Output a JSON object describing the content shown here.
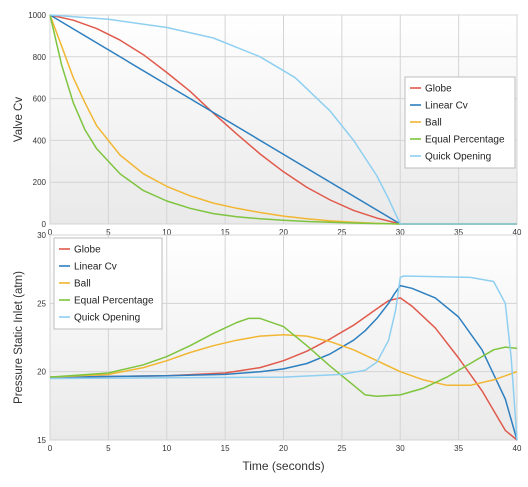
{
  "chart_data": [
    {
      "type": "line",
      "title": "",
      "xlabel": "",
      "ylabel": "Valve Cv",
      "xlim": [
        0,
        40
      ],
      "ylim": [
        0,
        1000
      ],
      "x_ticks": [
        "0",
        "5",
        "10",
        "15",
        "20",
        "25",
        "30",
        "35",
        "40"
      ],
      "y_ticks": [
        "0",
        "200",
        "400",
        "600",
        "800",
        "1000"
      ],
      "grid": true,
      "legend_position": "right",
      "series": [
        {
          "name": "Globe",
          "color": "#e05a4c",
          "x": [
            0,
            2,
            4,
            6,
            8,
            10,
            12,
            14,
            16,
            18,
            20,
            22,
            24,
            26,
            28,
            30,
            40
          ],
          "y": [
            1000,
            975,
            935,
            880,
            810,
            725,
            635,
            530,
            430,
            335,
            250,
            175,
            115,
            65,
            28,
            0,
            0
          ]
        },
        {
          "name": "Linear Cv",
          "color": "#2e7fbf",
          "x": [
            0,
            30,
            40
          ],
          "y": [
            1000,
            0,
            0
          ]
        },
        {
          "name": "Ball",
          "color": "#f2b632",
          "x": [
            0,
            1,
            2,
            3,
            4,
            6,
            8,
            10,
            12,
            14,
            16,
            18,
            20,
            22,
            24,
            26,
            28,
            30,
            40
          ],
          "y": [
            1000,
            850,
            700,
            580,
            470,
            330,
            240,
            180,
            135,
            100,
            75,
            55,
            38,
            25,
            15,
            8,
            3,
            0,
            0
          ]
        },
        {
          "name": "Equal Percentage",
          "color": "#7ec43f",
          "x": [
            0,
            1,
            2,
            3,
            4,
            6,
            8,
            10,
            12,
            14,
            16,
            18,
            20,
            22,
            24,
            26,
            28,
            30,
            40
          ],
          "y": [
            1000,
            760,
            580,
            450,
            360,
            240,
            160,
            110,
            75,
            50,
            35,
            25,
            18,
            12,
            8,
            5,
            2,
            0,
            0
          ]
        },
        {
          "name": "Quick Opening",
          "color": "#8fcff0",
          "x": [
            0,
            5,
            10,
            14,
            18,
            21,
            24,
            26,
            28,
            29,
            30,
            40
          ],
          "y": [
            1000,
            980,
            940,
            890,
            800,
            700,
            540,
            400,
            230,
            120,
            0,
            0
          ]
        }
      ]
    },
    {
      "type": "line",
      "title": "",
      "xlabel": "Time (seconds)",
      "ylabel": "Pressure Static Inlet (atm)",
      "xlim": [
        0,
        40
      ],
      "ylim": [
        15,
        30
      ],
      "x_ticks": [
        "0",
        "5",
        "10",
        "15",
        "20",
        "25",
        "30",
        "35",
        "40"
      ],
      "y_ticks": [
        "15",
        "20",
        "25",
        "30"
      ],
      "grid": true,
      "legend_position": "top-left",
      "series": [
        {
          "name": "Globe",
          "color": "#e05a4c",
          "x": [
            0,
            10,
            15,
            18,
            20,
            22,
            24,
            26,
            28,
            29,
            30,
            31,
            33,
            35,
            37,
            39,
            40
          ],
          "y": [
            19.6,
            19.7,
            19.9,
            20.3,
            20.8,
            21.5,
            22.4,
            23.4,
            24.6,
            25.2,
            25.4,
            24.8,
            23.2,
            21.0,
            18.6,
            15.7,
            15.0
          ]
        },
        {
          "name": "Linear Cv",
          "color": "#2e7fbf",
          "x": [
            0,
            10,
            15,
            18,
            20,
            22,
            24,
            26,
            27,
            28,
            29,
            29.5,
            30,
            31,
            33,
            35,
            37,
            39,
            40
          ],
          "y": [
            19.6,
            19.7,
            19.8,
            20.0,
            20.2,
            20.6,
            21.3,
            22.3,
            23.0,
            23.9,
            25.0,
            25.7,
            26.3,
            26.1,
            25.4,
            24.0,
            21.6,
            18.0,
            15.0
          ]
        },
        {
          "name": "Ball",
          "color": "#f2b632",
          "x": [
            0,
            5,
            8,
            10,
            12,
            14,
            16,
            18,
            20,
            22,
            24,
            26,
            28,
            30,
            32,
            34,
            36,
            38,
            40
          ],
          "y": [
            19.6,
            19.8,
            20.3,
            20.8,
            21.4,
            21.9,
            22.3,
            22.6,
            22.7,
            22.6,
            22.2,
            21.6,
            20.8,
            20.0,
            19.4,
            19.0,
            19.0,
            19.4,
            20.0
          ]
        },
        {
          "name": "Equal Percentage",
          "color": "#7ec43f",
          "x": [
            0,
            5,
            8,
            10,
            12,
            14,
            16,
            17,
            18,
            20,
            22,
            24,
            26,
            27,
            28,
            30,
            32,
            34,
            36,
            38,
            39,
            40
          ],
          "y": [
            19.6,
            19.9,
            20.5,
            21.1,
            21.9,
            22.8,
            23.6,
            23.9,
            23.9,
            23.3,
            21.9,
            20.4,
            19.0,
            18.3,
            18.2,
            18.3,
            18.8,
            19.6,
            20.6,
            21.6,
            21.8,
            21.7
          ]
        },
        {
          "name": "Quick Opening",
          "color": "#8fcff0",
          "x": [
            0,
            20,
            25,
            27,
            28,
            29,
            29.6,
            30,
            30.3,
            36,
            38,
            39,
            39.5,
            40
          ],
          "y": [
            19.5,
            19.6,
            19.8,
            20.1,
            20.7,
            22.3,
            24.5,
            26.9,
            27.0,
            26.9,
            26.6,
            25.0,
            21.0,
            15.0
          ]
        }
      ]
    }
  ]
}
